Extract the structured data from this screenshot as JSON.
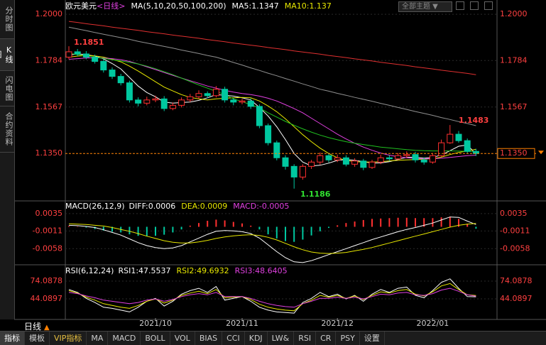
{
  "ui": {
    "sidebar_tabs": [
      "分时图",
      "K线图",
      "闪电图",
      "合约资料"
    ],
    "theme_button": "全部主题 ▼",
    "period": "日线",
    "period_arrow": "▲",
    "tabs": [
      "指标",
      "模板",
      "VIP指标",
      "MA",
      "MACD",
      "BOLL",
      "VOL",
      "BIAS",
      "CCI",
      "KDJ",
      "LW&",
      "RSI",
      "CR",
      "PSY",
      "设置"
    ]
  },
  "chart_data": [
    {
      "type": "candlestick",
      "title": "欧元美元",
      "period_label": "<日线>",
      "ma_label": "MA(5,10,20,50,100,200)",
      "legend": [
        {
          "text": "MA5:1.1347",
          "color": "#ffffff"
        },
        {
          "text": "MA10:1.137",
          "color": "#e8e800"
        }
      ],
      "categories": [
        null,
        null,
        null,
        null,
        null,
        null,
        null,
        null,
        null,
        null,
        "2021/10",
        null,
        null,
        null,
        null,
        null,
        null,
        null,
        null,
        null,
        "2021/11",
        null,
        null,
        null,
        null,
        null,
        null,
        null,
        null,
        null,
        null,
        "2021/12",
        null,
        null,
        null,
        null,
        null,
        null,
        null,
        null,
        null,
        null,
        "2022/01",
        null,
        null,
        null,
        null,
        null
      ],
      "open": [
        1.18,
        1.1825,
        1.1815,
        1.18,
        1.178,
        1.174,
        1.171,
        1.168,
        1.16,
        1.1585,
        1.16,
        1.1605,
        1.156,
        1.1575,
        1.16,
        1.1615,
        1.163,
        1.162,
        1.165,
        1.16,
        1.159,
        1.1595,
        1.157,
        1.148,
        1.14,
        1.133,
        1.129,
        1.124,
        1.129,
        1.131,
        1.134,
        1.132,
        1.133,
        1.13,
        1.1315,
        1.1285,
        1.131,
        1.133,
        1.1325,
        1.134,
        1.1345,
        1.132,
        1.131,
        1.134,
        1.14,
        1.144,
        1.141,
        1.136
      ],
      "high": [
        1.1851,
        1.1838,
        1.1828,
        1.1812,
        1.179,
        1.1752,
        1.1722,
        1.169,
        1.1612,
        1.1615,
        1.162,
        1.1618,
        1.1588,
        1.1612,
        1.1628,
        1.1645,
        1.164,
        1.1665,
        1.1662,
        1.161,
        1.1605,
        1.1608,
        1.158,
        1.149,
        1.141,
        1.1342,
        1.13,
        1.13,
        1.132,
        1.1355,
        1.1352,
        1.1345,
        1.1342,
        1.1328,
        1.1325,
        1.132,
        1.1345,
        1.1342,
        1.1352,
        1.136,
        1.1358,
        1.1332,
        1.1352,
        1.1415,
        1.1483,
        1.1455,
        1.142,
        1.1372
      ],
      "low": [
        1.179,
        1.1805,
        1.179,
        1.177,
        1.1728,
        1.1698,
        1.1668,
        1.1588,
        1.157,
        1.1575,
        1.159,
        1.1548,
        1.1552,
        1.1565,
        1.159,
        1.1605,
        1.1608,
        1.1612,
        1.1588,
        1.1575,
        1.158,
        1.1558,
        1.1468,
        1.1388,
        1.1318,
        1.1275,
        1.1186,
        1.1228,
        1.1278,
        1.1298,
        1.1308,
        1.131,
        1.129,
        1.1288,
        1.1272,
        1.1278,
        1.13,
        1.1315,
        1.1318,
        1.133,
        1.1308,
        1.1298,
        1.1302,
        1.1335,
        1.1395,
        1.14,
        1.135,
        1.1338
      ],
      "close": [
        1.1825,
        1.1815,
        1.18,
        1.178,
        1.174,
        1.171,
        1.168,
        1.16,
        1.1585,
        1.16,
        1.1605,
        1.156,
        1.1575,
        1.16,
        1.1615,
        1.163,
        1.162,
        1.165,
        1.16,
        1.159,
        1.1595,
        1.157,
        1.148,
        1.14,
        1.133,
        1.129,
        1.124,
        1.129,
        1.131,
        1.134,
        1.132,
        1.133,
        1.13,
        1.1315,
        1.1285,
        1.131,
        1.133,
        1.1325,
        1.134,
        1.1345,
        1.132,
        1.131,
        1.134,
        1.14,
        1.144,
        1.141,
        1.136,
        1.135
      ],
      "up_color": "#ff3030",
      "down_color": "#00c8a0",
      "ma": [
        {
          "color": "#ffffff",
          "values": [
            1.181,
            1.1815,
            1.1812,
            1.1805,
            1.1792,
            1.177,
            1.1745,
            1.1705,
            1.1665,
            1.1635,
            1.1615,
            1.159,
            1.1585,
            1.1588,
            1.159,
            1.1598,
            1.161,
            1.1625,
            1.1622,
            1.1618,
            1.161,
            1.16,
            1.1565,
            1.1525,
            1.1475,
            1.1415,
            1.135,
            1.131,
            1.1292,
            1.1295,
            1.1305,
            1.1318,
            1.1322,
            1.1318,
            1.1312,
            1.1305,
            1.1306,
            1.1312,
            1.1322,
            1.1332,
            1.1333,
            1.1328,
            1.1332,
            1.1343,
            1.1363,
            1.1384,
            1.139,
            1.1347
          ]
        },
        {
          "color": "#e8e800",
          "values": [
            1.18,
            1.1805,
            1.1808,
            1.1806,
            1.18,
            1.179,
            1.1778,
            1.1758,
            1.1735,
            1.171,
            1.1685,
            1.166,
            1.1642,
            1.1625,
            1.1612,
            1.1605,
            1.16,
            1.1605,
            1.1608,
            1.161,
            1.1612,
            1.161,
            1.1595,
            1.1572,
            1.1545,
            1.1512,
            1.1475,
            1.1438,
            1.1405,
            1.1375,
            1.135,
            1.133,
            1.1318,
            1.1312,
            1.131,
            1.131,
            1.1312,
            1.1315,
            1.1318,
            1.132,
            1.1322,
            1.1324,
            1.1326,
            1.1333,
            1.1345,
            1.1355,
            1.1362,
            1.137
          ]
        },
        {
          "color": "#e040e0",
          "values": [
            1.179,
            1.1793,
            1.1796,
            1.1797,
            1.1796,
            1.1793,
            1.1788,
            1.178,
            1.1768,
            1.1755,
            1.1742,
            1.1728,
            1.1715,
            1.1702,
            1.169,
            1.1678,
            1.1665,
            1.1655,
            1.1645,
            1.1637,
            1.163,
            1.1625,
            1.1618,
            1.1608,
            1.1595,
            1.1578,
            1.156,
            1.154,
            1.1515,
            1.149,
            1.1465,
            1.144,
            1.1418,
            1.1398,
            1.138,
            1.1365,
            1.1352,
            1.1342,
            1.1335,
            1.133,
            1.1327,
            1.1325,
            1.1326,
            1.1328,
            1.1332,
            1.1336,
            1.134,
            1.1342
          ]
        },
        {
          "color": "#20c020",
          "values": [
            1.1818,
            1.1812,
            1.1806,
            1.18,
            1.1794,
            1.1788,
            1.1782,
            1.1776,
            1.1768,
            1.1758,
            1.1746,
            1.1732,
            1.1718,
            1.1702,
            1.1686,
            1.167,
            1.1655,
            1.164,
            1.1625,
            1.1605,
            1.1592,
            1.1578,
            1.1563,
            1.154,
            1.152,
            1.15,
            1.1482,
            1.1465,
            1.145,
            1.1436,
            1.1424,
            1.1414,
            1.1405,
            1.1398,
            1.1392,
            1.1386,
            1.138,
            1.1376,
            1.1372,
            1.1368,
            1.1365,
            1.1363,
            1.1362,
            1.1362,
            1.1362,
            1.1361,
            1.136,
            1.1359
          ]
        },
        {
          "color": "#909090",
          "values": [
            1.194,
            1.1932,
            1.1924,
            1.1915,
            1.1907,
            1.1899,
            1.1891,
            1.1883,
            1.1874,
            1.1866,
            1.1858,
            1.185,
            1.1842,
            1.1833,
            1.1825,
            1.1817,
            1.1808,
            1.18,
            1.1788,
            1.1775,
            1.1763,
            1.175,
            1.1738,
            1.1725,
            1.1713,
            1.17,
            1.1688,
            1.1675,
            1.1663,
            1.165,
            1.1641,
            1.1631,
            1.1622,
            1.1612,
            1.1603,
            1.1594,
            1.1584,
            1.1575,
            1.1565,
            1.1556,
            1.1546,
            1.1537,
            1.1528,
            1.1518,
            1.1509,
            1.1499,
            1.149,
            1.148
          ]
        },
        {
          "color": "#e03030",
          "values": [
            1.1967,
            1.1962,
            1.1956,
            1.1951,
            1.1946,
            1.194,
            1.1935,
            1.193,
            1.1925,
            1.1919,
            1.1914,
            1.1909,
            1.1903,
            1.1898,
            1.1893,
            1.1888,
            1.1882,
            1.1877,
            1.1872,
            1.1866,
            1.1861,
            1.1856,
            1.1851,
            1.1845,
            1.184,
            1.1835,
            1.1829,
            1.1824,
            1.1819,
            1.1814,
            1.1808,
            1.1803,
            1.1798,
            1.1792,
            1.1787,
            1.1782,
            1.1776,
            1.1771,
            1.1766,
            1.1761,
            1.1755,
            1.175,
            1.1745,
            1.1739,
            1.1734,
            1.1729,
            1.1724,
            1.1718
          ]
        }
      ],
      "annotations": [
        {
          "label": "1.1851",
          "color": "#ff4040"
        },
        {
          "label": "1.1186",
          "color": "#30e030"
        },
        {
          "label": "1.1483",
          "color": "#ff4040"
        }
      ],
      "last_price": {
        "value": 1.135,
        "label": "1.1350",
        "color": "#ff8000"
      },
      "ylim": [
        1.1132,
        1.2027
      ],
      "yticks": [
        {
          "value": 1.2,
          "label": "1.2000"
        },
        1.1784,
        1.1567,
        {
          "value": 1.135,
          "label": "1.1350"
        }
      ],
      "grid": true
    },
    {
      "type": "macd",
      "title": "MACD(26,12,9)",
      "legend": [
        {
          "text": "DIFF:0.0006",
          "color": "#ffffff"
        },
        {
          "text": "DEA:0.0009",
          "color": "#e8e800"
        },
        {
          "text": "MACD:-0.0005",
          "color": "#e040e0"
        }
      ],
      "lines": [
        {
          "color": "#ffffff",
          "values": [
            0.0004,
            0.0003,
            0.0001,
            -0.0002,
            -0.0008,
            -0.0015,
            -0.0022,
            -0.0032,
            -0.0042,
            -0.005,
            -0.0055,
            -0.0058,
            -0.0056,
            -0.005,
            -0.004,
            -0.003,
            -0.002,
            -0.0012,
            -0.001,
            -0.0011,
            -0.0013,
            -0.0018,
            -0.003,
            -0.0048,
            -0.0066,
            -0.0082,
            -0.0093,
            -0.0095,
            -0.009,
            -0.0082,
            -0.0074,
            -0.0066,
            -0.0058,
            -0.005,
            -0.0042,
            -0.0034,
            -0.0027,
            -0.002,
            -0.0013,
            -0.0007,
            -0.0002,
            0.0004,
            0.001,
            0.0018,
            0.0026,
            0.0025,
            0.0015,
            0.0006
          ]
        },
        {
          "color": "#e8e800",
          "values": [
            0.0008,
            0.0007,
            0.0006,
            0.0004,
            0.0002,
            -0.0002,
            -0.0007,
            -0.0012,
            -0.0018,
            -0.0025,
            -0.0031,
            -0.0037,
            -0.0041,
            -0.0043,
            -0.0043,
            -0.004,
            -0.0036,
            -0.0031,
            -0.0027,
            -0.0024,
            -0.0022,
            -0.0021,
            -0.0023,
            -0.0028,
            -0.0035,
            -0.0044,
            -0.0053,
            -0.0061,
            -0.0067,
            -0.007,
            -0.0071,
            -0.007,
            -0.0068,
            -0.0064,
            -0.006,
            -0.0055,
            -0.0049,
            -0.0043,
            -0.0037,
            -0.0031,
            -0.0025,
            -0.0019,
            -0.0013,
            -0.0007,
            -0.0001,
            0.0004,
            0.0007,
            0.0009
          ]
        }
      ],
      "histogram": [
        0.0002,
        0.0001,
        -0.0002,
        -0.0006,
        -0.001,
        -0.0013,
        -0.0015,
        -0.002,
        -0.0024,
        -0.0025,
        -0.0024,
        -0.0021,
        -0.0015,
        -0.0007,
        0.0003,
        0.001,
        0.0016,
        0.0019,
        0.0017,
        0.0013,
        0.0009,
        0.0003,
        -0.0007,
        -0.002,
        -0.0031,
        -0.0038,
        -0.004,
        -0.0034,
        -0.0023,
        -0.0012,
        -0.0003,
        0.0004,
        0.001,
        0.0014,
        0.0018,
        0.0021,
        0.0022,
        0.0023,
        0.0024,
        0.0024,
        0.0023,
        0.0023,
        0.0023,
        0.0025,
        0.0027,
        0.0021,
        0.0008,
        -0.0005
      ],
      "up_color": "#ff3030",
      "down_color": "#00c8a0",
      "ylim": [
        -0.0099,
        0.0065
      ],
      "yticks": [
        0.0035,
        -0.0011,
        -0.0058
      ]
    },
    {
      "type": "rsi",
      "title": "RSI(6,12,24)",
      "legend": [
        {
          "text": "RSI1:47.5537",
          "color": "#ffffff"
        },
        {
          "text": "RSI2:49.6932",
          "color": "#e8e800"
        },
        {
          "text": "RSI3:48.6405",
          "color": "#e040e0"
        }
      ],
      "lines": [
        {
          "color": "#ffffff",
          "values": [
            60,
            55,
            45,
            38,
            30,
            28,
            25,
            22,
            30,
            40,
            45,
            32,
            40,
            52,
            58,
            62,
            55,
            65,
            42,
            45,
            48,
            40,
            30,
            25,
            22,
            21,
            20,
            38,
            45,
            55,
            48,
            52,
            44,
            50,
            40,
            52,
            60,
            55,
            62,
            64,
            50,
            46,
            58,
            72,
            78,
            62,
            48,
            47.5537
          ]
        },
        {
          "color": "#e8e800",
          "values": [
            58,
            54,
            47,
            42,
            36,
            33,
            30,
            28,
            33,
            40,
            44,
            37,
            42,
            50,
            54,
            57,
            53,
            60,
            46,
            47,
            48,
            43,
            35,
            30,
            27,
            25,
            24,
            36,
            42,
            50,
            47,
            50,
            45,
            49,
            43,
            50,
            56,
            54,
            58,
            60,
            52,
            49,
            56,
            66,
            70,
            60,
            51,
            49.6932
          ]
        },
        {
          "color": "#e040e0",
          "values": [
            55,
            53,
            49,
            46,
            42,
            40,
            38,
            36,
            38,
            42,
            44,
            40,
            43,
            48,
            51,
            53,
            51,
            55,
            48,
            48,
            48,
            45,
            40,
            36,
            33,
            31,
            30,
            36,
            40,
            45,
            45,
            47,
            45,
            47,
            44,
            48,
            52,
            51,
            54,
            55,
            51,
            50,
            53,
            59,
            62,
            57,
            51,
            48.6405
          ]
        }
      ],
      "ylim": [
        11.7,
        84.9
      ],
      "yticks": [
        74.0878,
        44.0897
      ]
    }
  ]
}
